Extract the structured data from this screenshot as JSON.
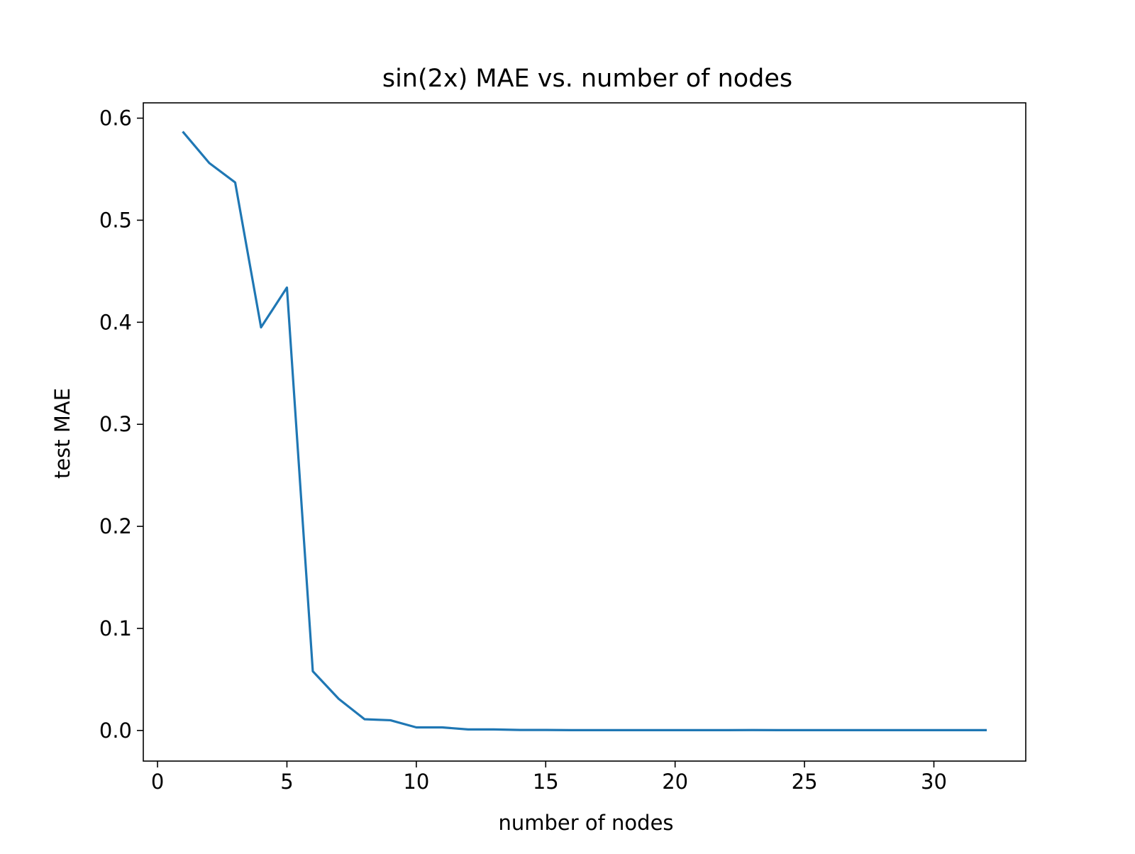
{
  "chart_data": {
    "type": "line",
    "title": "sin(2x) MAE vs. number of nodes",
    "xlabel": "number of nodes",
    "ylabel": "test MAE",
    "xlim": [
      -0.55,
      33.55
    ],
    "ylim": [
      -0.03,
      0.615
    ],
    "xticks": [
      0,
      5,
      10,
      15,
      20,
      25,
      30
    ],
    "yticks": [
      0.0,
      0.1,
      0.2,
      0.3,
      0.4,
      0.5,
      0.6
    ],
    "xtick_labels": [
      "0",
      "5",
      "10",
      "15",
      "20",
      "25",
      "30"
    ],
    "ytick_labels": [
      "0.0",
      "0.1",
      "0.2",
      "0.3",
      "0.4",
      "0.5",
      "0.6"
    ],
    "grid": false,
    "series": [
      {
        "color": "#1f77b4",
        "x": [
          1,
          2,
          3,
          4,
          5,
          6,
          7,
          8,
          9,
          10,
          11,
          12,
          13,
          14,
          15,
          16,
          17,
          18,
          19,
          20,
          21,
          22,
          23,
          24,
          25,
          26,
          27,
          28,
          29,
          30,
          31,
          32
        ],
        "y": [
          0.586,
          0.556,
          0.537,
          0.395,
          0.434,
          0.058,
          0.031,
          0.011,
          0.01,
          0.003,
          0.003,
          0.001,
          0.001,
          0.0005,
          0.0005,
          0.0003,
          0.0003,
          0.0003,
          0.0003,
          0.0003,
          0.0003,
          0.0003,
          0.0004,
          0.0003,
          0.0003,
          0.0003,
          0.0003,
          0.0003,
          0.0003,
          0.0003,
          0.0003,
          0.0003
        ]
      }
    ]
  }
}
